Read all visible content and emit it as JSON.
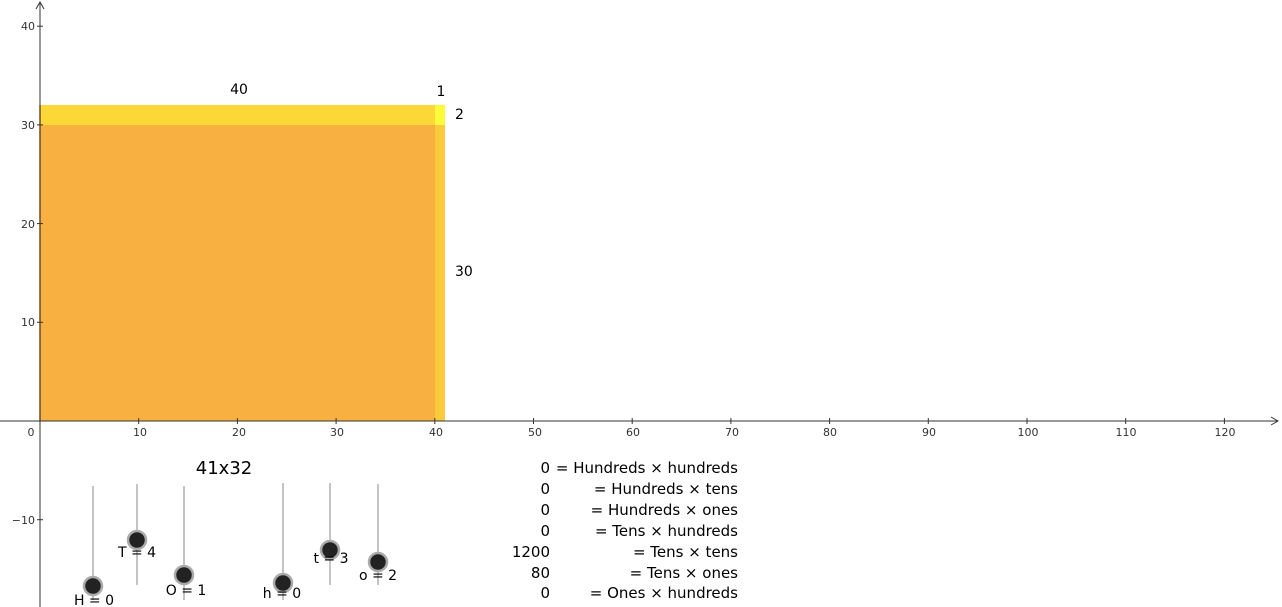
{
  "chart_data": {
    "type": "area_model",
    "axes": {
      "x_ticks": [
        "0",
        "10",
        "20",
        "30",
        "40",
        "50",
        "60",
        "70",
        "80",
        "90",
        "100",
        "110",
        "120"
      ],
      "y_ticks": [
        "10",
        "20",
        "30",
        "40",
        "−10"
      ]
    },
    "rectangles": [
      {
        "id": "tens-tens",
        "x": [
          0,
          40
        ],
        "y": [
          0,
          30
        ],
        "color": "#f7a21e"
      },
      {
        "id": "ones-tens",
        "x": [
          40,
          41
        ],
        "y": [
          0,
          30
        ],
        "color": "#fbc21b"
      },
      {
        "id": "tens-ones",
        "x": [
          0,
          40
        ],
        "y": [
          30,
          32
        ],
        "color": "#fbd422"
      },
      {
        "id": "ones-ones",
        "x": [
          40,
          41
        ],
        "y": [
          30,
          32
        ],
        "color": "#fbfb3a"
      }
    ],
    "dimension_labels": {
      "tens_width": "40",
      "ones_width": "1",
      "ones_height": "2",
      "tens_height": "30"
    },
    "title": "41x32",
    "sliders": [
      {
        "name": "H",
        "label": "H = 0",
        "value": 0
      },
      {
        "name": "T",
        "label": "T = 4",
        "value": 4
      },
      {
        "name": "O",
        "label": "O = 1",
        "value": 1
      },
      {
        "name": "h",
        "label": "h = 0",
        "value": 0
      },
      {
        "name": "t",
        "label": "t = 3",
        "value": 3
      },
      {
        "name": "o",
        "label": "o = 2",
        "value": 2
      }
    ],
    "products": [
      {
        "value": "0",
        "label": "= Hundreds × hundreds"
      },
      {
        "value": "0",
        "label": "= Hundreds × tens"
      },
      {
        "value": "0",
        "label": "= Hundreds × ones"
      },
      {
        "value": "0",
        "label": "= Tens × hundreds"
      },
      {
        "value": "1200",
        "label": "= Tens × tens"
      },
      {
        "value": "80",
        "label": "= Tens × ones"
      },
      {
        "value": "0",
        "label": "= Ones × hundreds"
      }
    ]
  }
}
